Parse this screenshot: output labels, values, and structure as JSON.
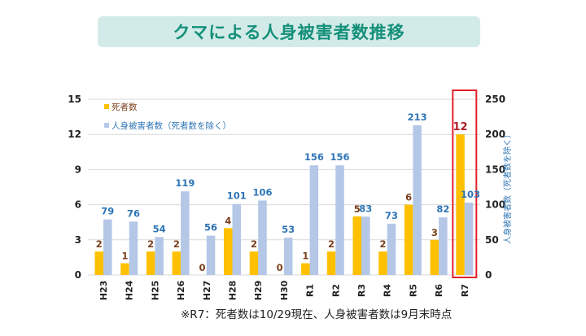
{
  "title": "クマによる人身被害者数推移",
  "footnote": "※R7：死者数は10/29現在、人身被害者数は9月末時点",
  "colors": {
    "deaths": "#ffc000",
    "injuries": "#b4c7e7",
    "deaths_label": "#7a3e1a",
    "injuries_label": "#2e75b6",
    "highlight": "#e0202a",
    "highlight_label": "#b01e2e",
    "grid": "#d9d9d9",
    "title_bg": "#d3ebe8",
    "title_text": "#14907a"
  },
  "chart_data": {
    "type": "bar",
    "title": "クマによる人身被害者数推移",
    "categories": [
      "H23",
      "H24",
      "H25",
      "H26",
      "H27",
      "H28",
      "H29",
      "H30",
      "R1",
      "R2",
      "R3",
      "R4",
      "R5",
      "R6",
      "R7"
    ],
    "series": [
      {
        "name": "死者数",
        "axis": "left",
        "values": [
          2,
          1,
          2,
          2,
          0,
          4,
          2,
          0,
          1,
          2,
          5,
          2,
          6,
          3,
          12
        ]
      },
      {
        "name": "人身被害者数（死者数を除く）",
        "axis": "right",
        "values": [
          79,
          76,
          54,
          119,
          56,
          101,
          106,
          53,
          156,
          156,
          83,
          73,
          213,
          82,
          103
        ]
      }
    ],
    "y_left": {
      "label": "",
      "ylim": [
        0,
        15
      ],
      "ticks": [
        0,
        3,
        6,
        9,
        12,
        15
      ]
    },
    "y_right": {
      "label": "人身被害者数（死者数を除く）",
      "ylim": [
        0,
        250
      ],
      "ticks": [
        0,
        50,
        100,
        150,
        200,
        250
      ]
    },
    "xlabel": "",
    "grid": true,
    "legend": {
      "position": "top-left",
      "entries": [
        "死者数",
        "人身被害者数（死者数を除く）"
      ]
    },
    "highlight_category": "R7"
  }
}
